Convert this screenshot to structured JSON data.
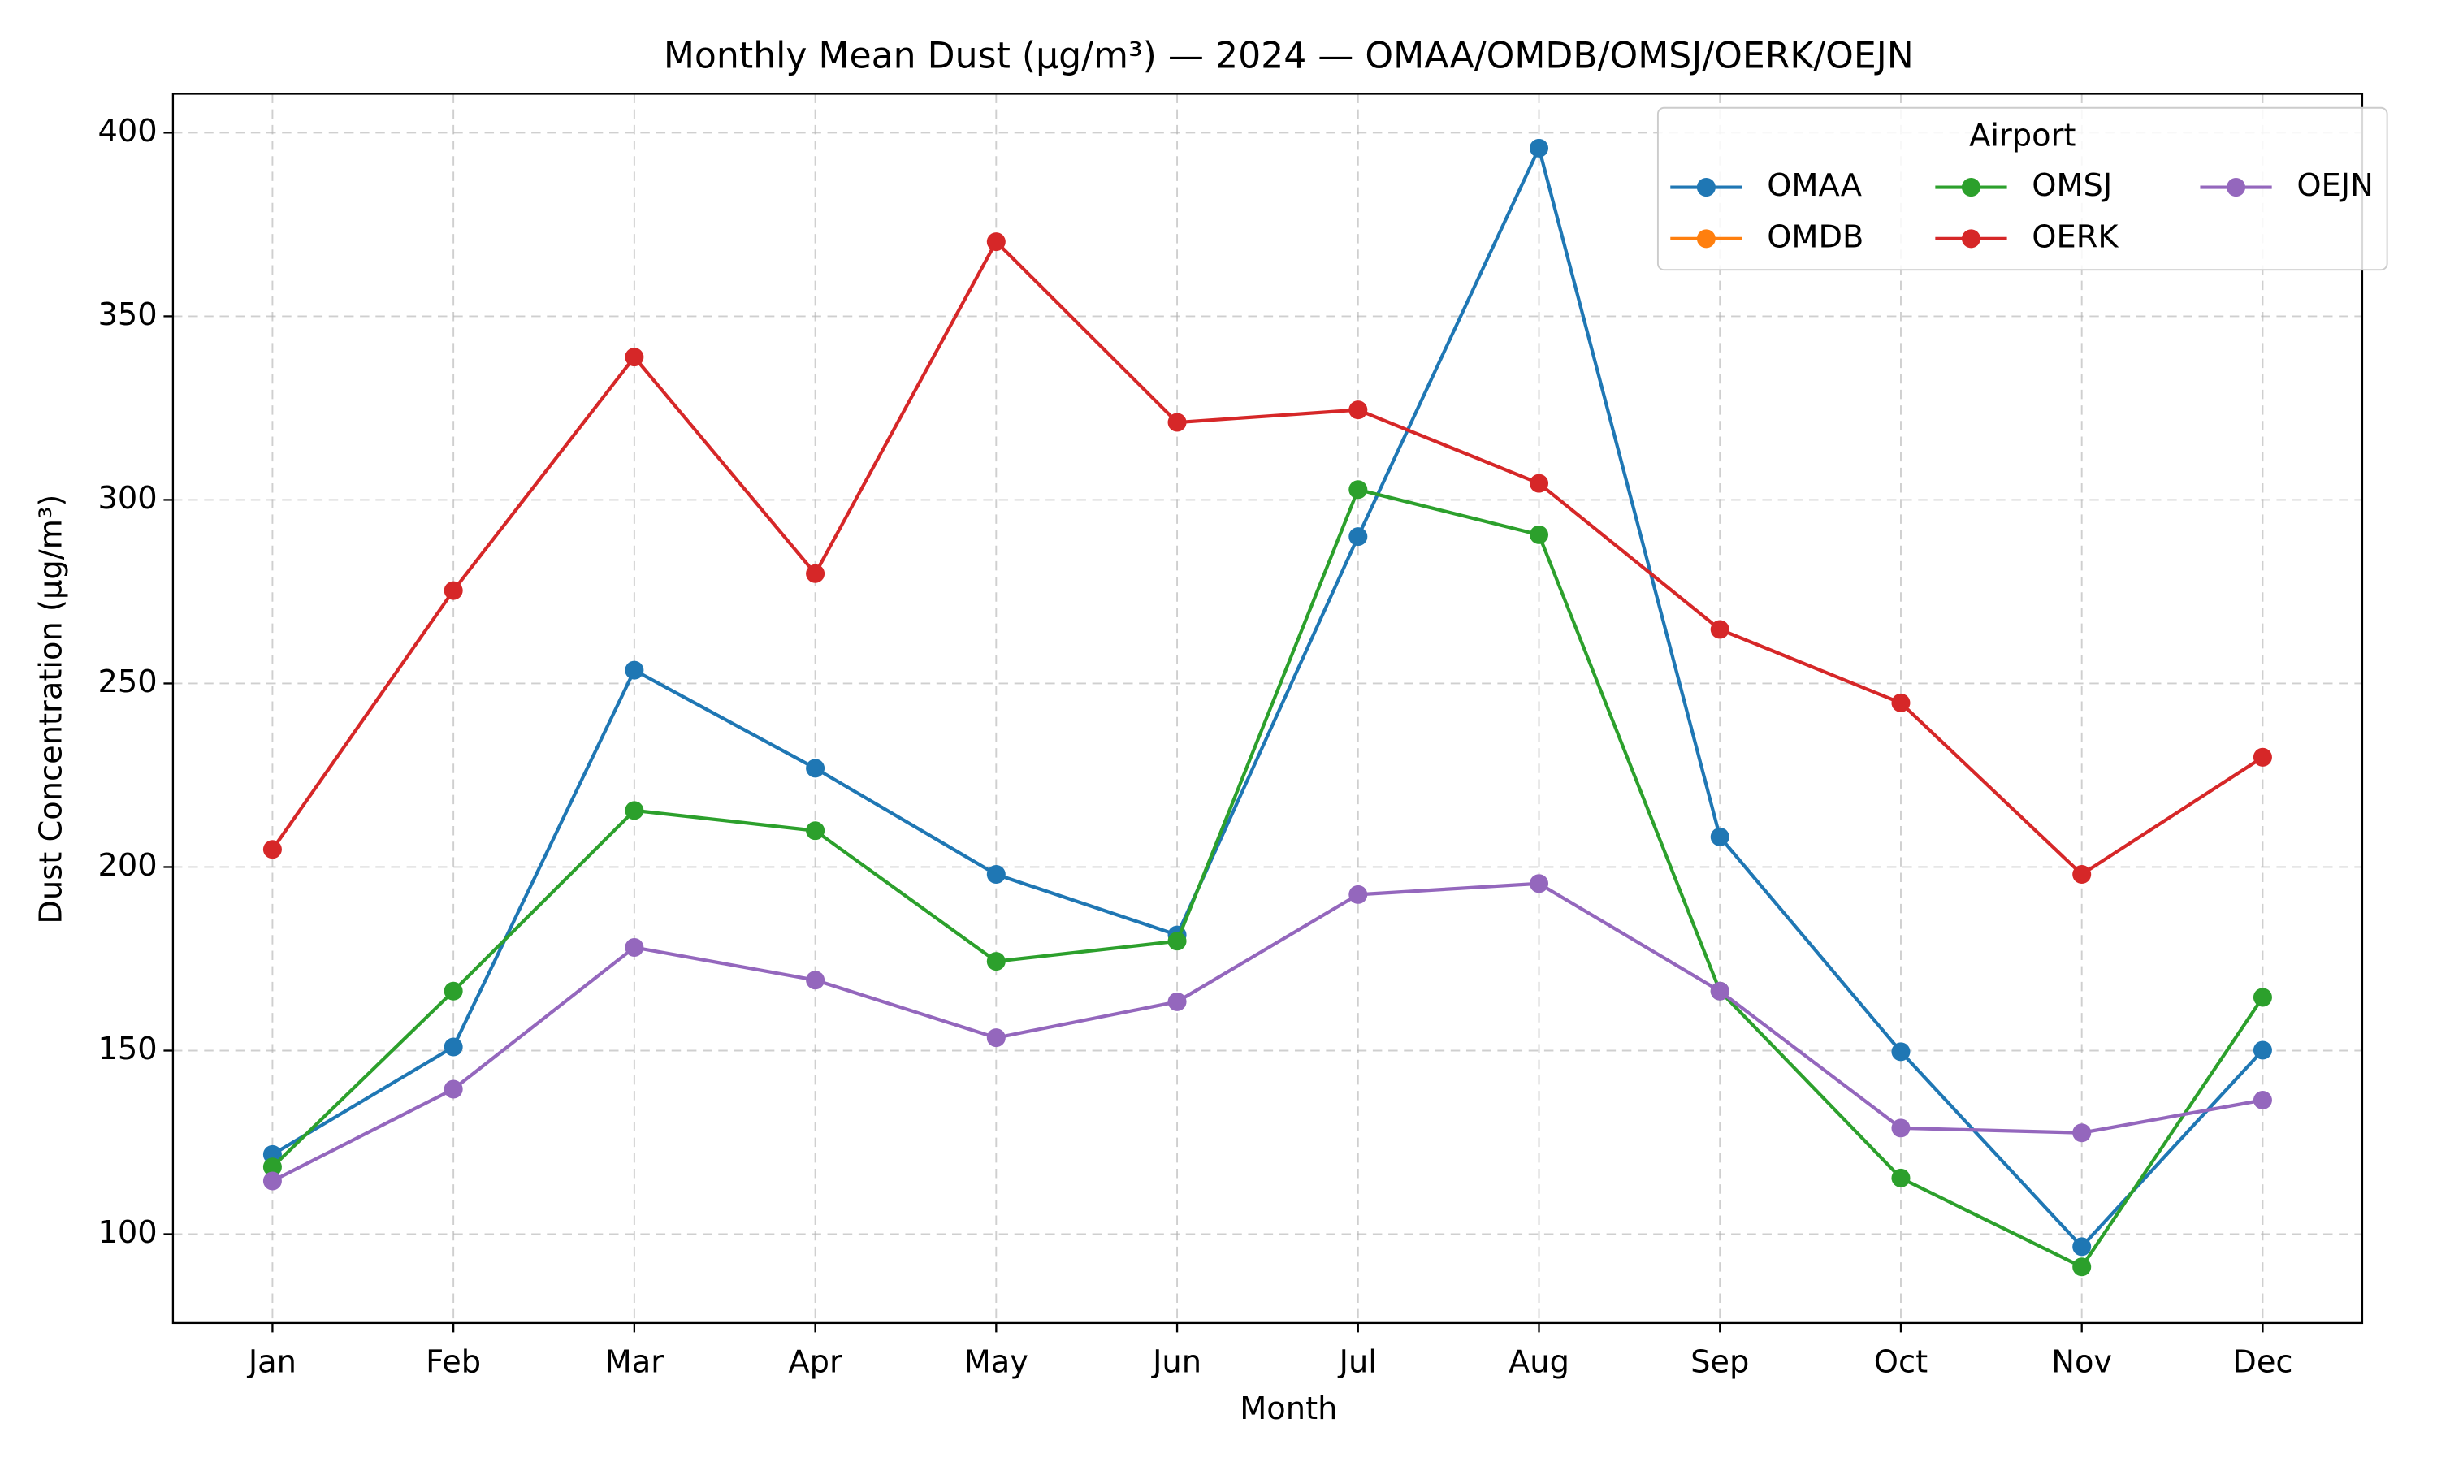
{
  "chart_data": {
    "type": "line",
    "title": "Monthly Mean Dust (µg/m³) — 2024 — OMAA/OMDB/OMSJ/OERK/OEJN",
    "x_label": "Month",
    "y_label": "Dust Concentration (µg/m³)",
    "categories": [
      "Jan",
      "Feb",
      "Mar",
      "Apr",
      "May",
      "Jun",
      "Jul",
      "Aug",
      "Sep",
      "Oct",
      "Nov",
      "Dec"
    ],
    "series": [
      {
        "name": "OMAA",
        "color": "#1f77b4",
        "values": [
          121.7,
          151,
          253.6,
          226.9,
          198,
          181.5,
          290,
          395.8,
          208.2,
          149.7,
          96.6,
          150.1
        ]
      },
      {
        "name": "OMDB",
        "color": "#ff7f0e",
        "values": [
          null,
          null,
          null,
          null,
          null,
          null,
          null,
          null,
          null,
          null,
          null,
          null
        ]
      },
      {
        "name": "OMSJ",
        "color": "#2ca02c",
        "values": [
          118.3,
          166.2,
          215.4,
          209.9,
          174.3,
          179.8,
          302.8,
          290.5,
          166.2,
          115.3,
          91.1,
          164.5
        ]
      },
      {
        "name": "OERK",
        "color": "#d62728",
        "values": [
          204.8,
          275.3,
          338.9,
          279.9,
          370.3,
          321.1,
          324.5,
          304.5,
          264.7,
          244.7,
          198,
          229.9
        ]
      },
      {
        "name": "OEJN",
        "color": "#9467bd",
        "values": [
          114.5,
          139.5,
          178.1,
          169.2,
          153.5,
          163.3,
          192.5,
          195.5,
          166.2,
          128.9,
          127.6,
          136.5
        ]
      }
    ],
    "ylim": [
      75.8,
      410.6
    ],
    "yticks": [
      100,
      150,
      200,
      250,
      300,
      350,
      400
    ],
    "grid": true,
    "legend_title": "Airport",
    "legend_position": "upper right",
    "legend_columns": 3
  }
}
